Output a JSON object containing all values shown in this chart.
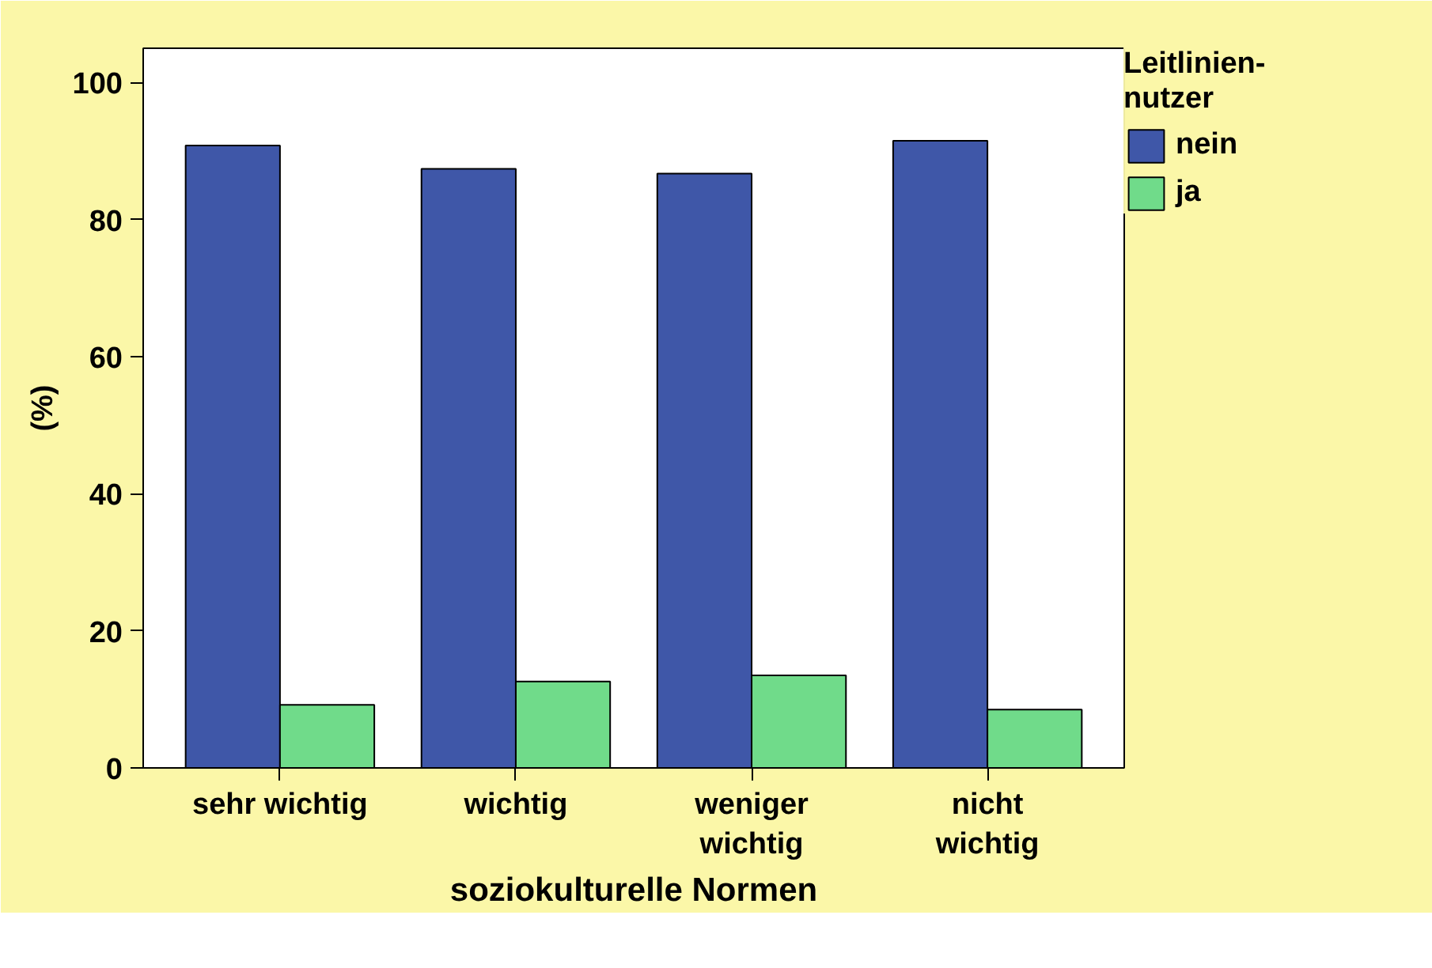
{
  "chart_data": {
    "type": "bar",
    "xlabel": "soziokulturelle Normen",
    "ylabel": "(%)",
    "legend_title": "Leitlinien-\nnutzer",
    "categories": [
      "sehr wichtig",
      "wichtig",
      "weniger\nwichtig",
      "nicht\nwichtig"
    ],
    "series": [
      {
        "name": "nein",
        "color": "#3f57a8",
        "values": [
          90.8,
          87.4,
          86.7,
          91.5
        ]
      },
      {
        "name": "ja",
        "color": "#70db8a",
        "values": [
          9.2,
          12.6,
          13.5,
          8.5
        ]
      }
    ],
    "ylim": [
      0,
      105
    ],
    "yticks": [
      0,
      20,
      40,
      60,
      80,
      100
    ],
    "grid": false,
    "legend": "right"
  }
}
